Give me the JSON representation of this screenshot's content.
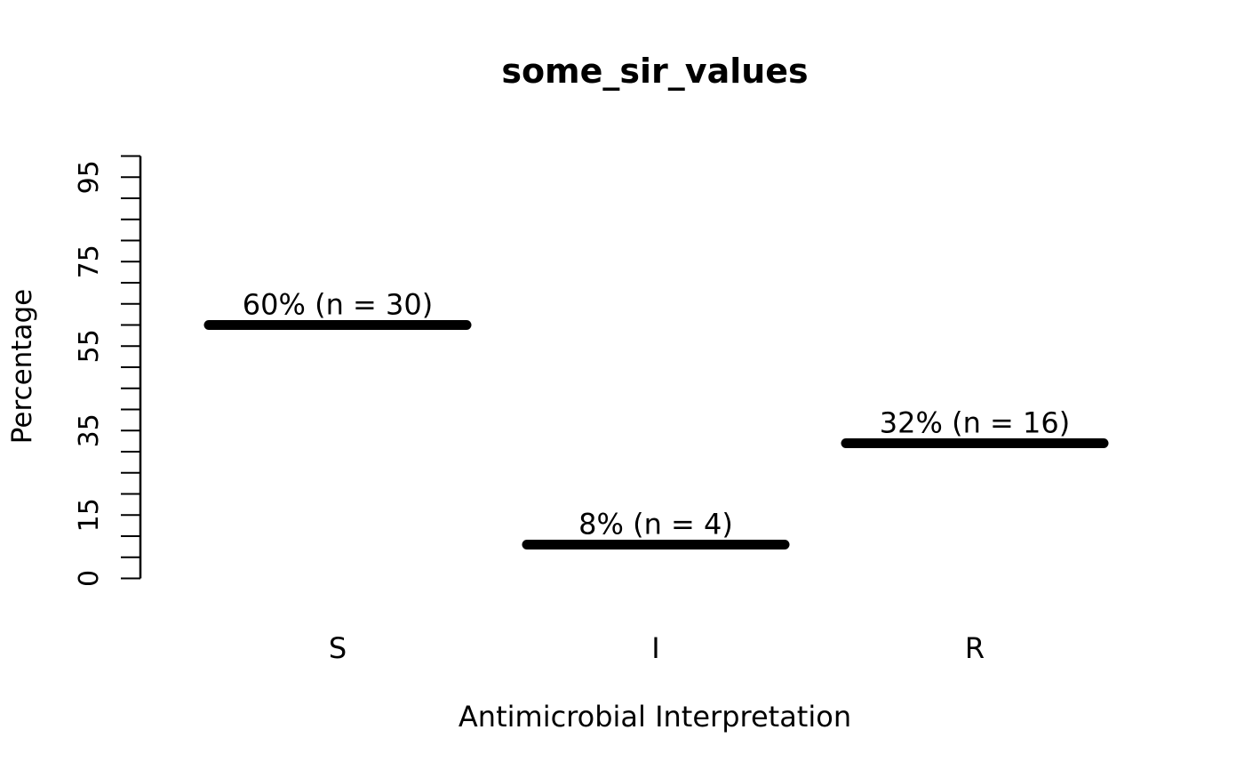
{
  "chart_data": {
    "type": "bar",
    "style": "horizontal-dash-marks",
    "title": "some_sir_values",
    "xlabel": "Antimicrobial Interpretation",
    "ylabel": "Percentage",
    "categories": [
      "S",
      "I",
      "R"
    ],
    "values": [
      60,
      8,
      32
    ],
    "counts": [
      30,
      4,
      16
    ],
    "value_labels": [
      "60% (n = 30)",
      "8% (n = 4)",
      "32% (n = 16)"
    ],
    "ylim": [
      0,
      100
    ],
    "ytick_step": 5,
    "ytick_labels": [
      0,
      15,
      35,
      55,
      75,
      95
    ],
    "grid": false,
    "legend": "none",
    "bar_color": "#000000",
    "text_color": "#000000",
    "background": "#ffffff"
  }
}
